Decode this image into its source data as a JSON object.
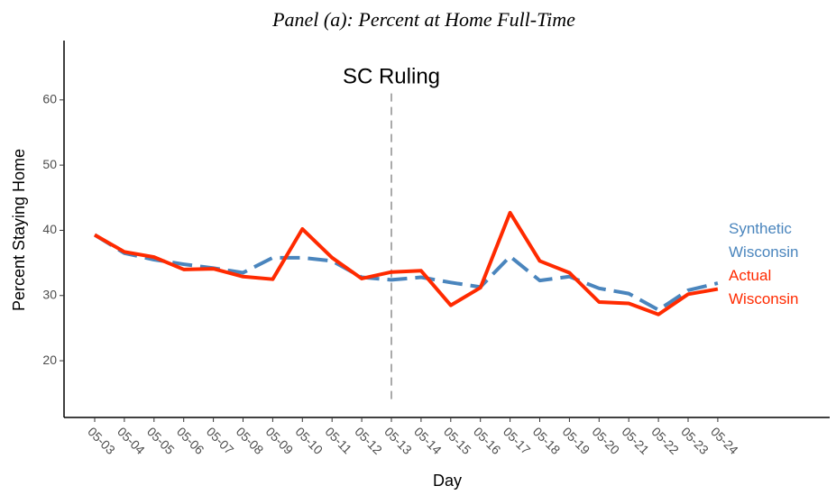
{
  "chart_data": {
    "type": "line",
    "title": "Panel (a): Percent at Home Full-Time",
    "x_label": "Day",
    "y_label": "Percent Staying Home",
    "categories": [
      "05-03",
      "05-04",
      "05-05",
      "05-06",
      "05-07",
      "05-08",
      "05-09",
      "05-10",
      "05-11",
      "05-12",
      "05-13",
      "05-14",
      "05-15",
      "05-16",
      "05-17",
      "05-18",
      "05-19",
      "05-20",
      "05-21",
      "05-22",
      "05-23",
      "05-24"
    ],
    "series": [
      {
        "name": "Synthetic Wisconsin",
        "color": "#4a85bd",
        "dashed": true,
        "values": [
          39.3,
          36.5,
          35.5,
          34.8,
          34.2,
          33.5,
          35.8,
          35.8,
          35.3,
          32.8,
          32.4,
          32.8,
          32.0,
          31.3,
          36.0,
          32.3,
          32.9,
          31.1,
          30.3,
          27.8,
          30.8,
          31.9
        ]
      },
      {
        "name": "Actual Wisconsin",
        "color": "#ff2a00",
        "dashed": false,
        "values": [
          39.3,
          36.7,
          35.9,
          34.0,
          34.1,
          32.9,
          32.5,
          40.2,
          35.8,
          32.6,
          33.6,
          33.8,
          28.5,
          31.2,
          42.7,
          35.3,
          33.5,
          29.0,
          28.8,
          27.1,
          30.2,
          31.0
        ]
      }
    ],
    "vline": {
      "x": "05-13",
      "label": "SC Ruling"
    },
    "ylim": [
      11.3,
      69.1
    ],
    "yticks": [
      20,
      30,
      40,
      50,
      60
    ]
  }
}
